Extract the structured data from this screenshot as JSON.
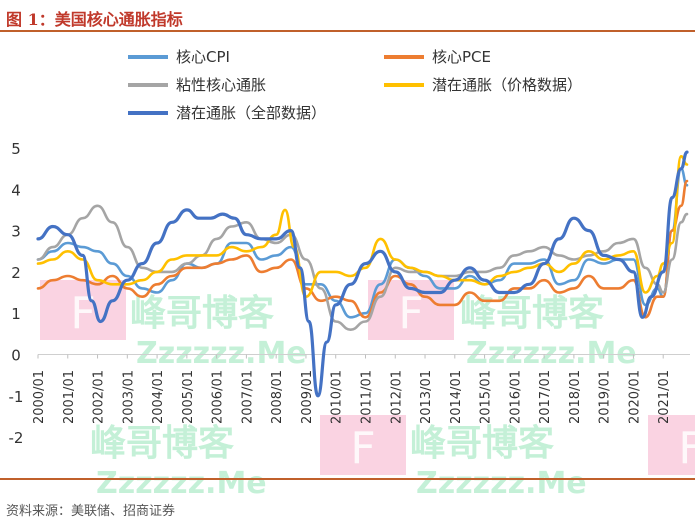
{
  "figure": {
    "title": "图 1：美国核心通胀指标",
    "source": "资料来源：美联储、招商证券"
  },
  "chart_data": {
    "type": "line",
    "x_categories": [
      "2000/01",
      "2001/01",
      "2002/01",
      "2003/01",
      "2004/01",
      "2005/01",
      "2006/01",
      "2007/01",
      "2008/01",
      "2009/01",
      "2010/01",
      "2011/01",
      "2012/01",
      "2013/01",
      "2014/01",
      "2015/01",
      "2016/01",
      "2017/01",
      "2018/01",
      "2019/01",
      "2020/01",
      "2021/01"
    ],
    "y_ticks": [
      -2,
      -1,
      0,
      1,
      2,
      3,
      4,
      5
    ],
    "ylim": [
      -2.3,
      5.1
    ],
    "grid": false,
    "legend_position": "top-left",
    "series": [
      {
        "name": "核心CPI",
        "color": "#5b9bd5",
        "x": [
          2000.0,
          2000.5,
          2001.0,
          2001.5,
          2002.0,
          2002.5,
          2003.0,
          2003.5,
          2004.0,
          2004.5,
          2005.0,
          2005.5,
          2006.0,
          2006.5,
          2007.0,
          2007.5,
          2008.0,
          2008.5,
          2009.0,
          2009.5,
          2010.0,
          2010.5,
          2011.0,
          2011.5,
          2012.0,
          2012.5,
          2013.0,
          2013.5,
          2014.0,
          2014.5,
          2015.0,
          2015.5,
          2016.0,
          2016.5,
          2017.0,
          2017.5,
          2018.0,
          2018.5,
          2019.0,
          2019.5,
          2020.0,
          2020.4,
          2020.8,
          2021.0,
          2021.3,
          2021.6,
          2021.8
        ],
        "y": [
          2.3,
          2.5,
          2.7,
          2.6,
          2.5,
          2.2,
          1.9,
          1.6,
          1.5,
          1.8,
          2.2,
          2.1,
          2.2,
          2.7,
          2.7,
          2.3,
          2.4,
          2.6,
          1.7,
          1.7,
          1.3,
          0.9,
          1.0,
          1.7,
          2.3,
          2.1,
          1.9,
          1.6,
          1.6,
          1.9,
          1.7,
          1.8,
          2.2,
          2.2,
          2.3,
          1.7,
          1.8,
          2.3,
          2.2,
          2.3,
          2.3,
          1.2,
          1.6,
          1.4,
          3.0,
          4.5,
          4.1
        ]
      },
      {
        "name": "核心PCE",
        "color": "#ed7d31",
        "x": [
          2000.0,
          2000.5,
          2001.0,
          2001.5,
          2002.0,
          2002.5,
          2003.0,
          2003.5,
          2004.0,
          2004.5,
          2005.0,
          2005.5,
          2006.0,
          2006.5,
          2007.0,
          2007.5,
          2008.0,
          2008.5,
          2009.0,
          2009.5,
          2010.0,
          2010.5,
          2011.0,
          2011.5,
          2012.0,
          2012.5,
          2013.0,
          2013.5,
          2014.0,
          2014.5,
          2015.0,
          2015.5,
          2016.0,
          2016.5,
          2017.0,
          2017.5,
          2018.0,
          2018.5,
          2019.0,
          2019.5,
          2020.0,
          2020.4,
          2020.8,
          2021.0,
          2021.3,
          2021.6,
          2021.8
        ],
        "y": [
          1.6,
          1.8,
          1.9,
          1.8,
          1.7,
          1.9,
          1.6,
          1.4,
          1.7,
          1.9,
          2.1,
          2.1,
          2.2,
          2.3,
          2.4,
          2.0,
          2.1,
          2.3,
          1.6,
          1.3,
          1.4,
          1.3,
          0.9,
          1.5,
          1.9,
          1.7,
          1.4,
          1.2,
          1.2,
          1.5,
          1.3,
          1.3,
          1.6,
          1.6,
          1.8,
          1.5,
          1.6,
          1.9,
          1.6,
          1.6,
          1.8,
          0.9,
          1.4,
          1.4,
          3.0,
          3.6,
          4.2
        ]
      },
      {
        "name": "粘性核心通胀",
        "color": "#a5a5a5",
        "x": [
          2000.0,
          2000.5,
          2001.0,
          2001.5,
          2002.0,
          2002.5,
          2003.0,
          2003.5,
          2004.0,
          2004.5,
          2005.0,
          2005.5,
          2006.0,
          2006.5,
          2007.0,
          2007.5,
          2008.0,
          2008.5,
          2009.0,
          2009.5,
          2010.0,
          2010.5,
          2011.0,
          2011.5,
          2012.0,
          2012.5,
          2013.0,
          2013.5,
          2014.0,
          2014.5,
          2015.0,
          2015.5,
          2016.0,
          2016.5,
          2017.0,
          2017.5,
          2018.0,
          2018.5,
          2019.0,
          2019.5,
          2020.0,
          2020.4,
          2020.8,
          2021.0,
          2021.3,
          2021.6,
          2021.8
        ],
        "y": [
          2.3,
          2.6,
          2.9,
          3.3,
          3.6,
          3.2,
          2.6,
          2.1,
          2.0,
          2.0,
          2.2,
          2.4,
          2.8,
          3.1,
          3.2,
          2.8,
          2.7,
          2.9,
          2.3,
          1.6,
          0.8,
          0.6,
          0.8,
          1.4,
          2.1,
          2.0,
          2.0,
          1.9,
          1.9,
          2.0,
          2.0,
          2.1,
          2.4,
          2.5,
          2.6,
          2.4,
          2.3,
          2.4,
          2.5,
          2.7,
          2.8,
          2.1,
          1.7,
          1.5,
          2.3,
          3.2,
          3.4
        ]
      },
      {
        "name": "潜在通胀（价格数据）",
        "color": "#ffc000",
        "x": [
          2000.0,
          2000.5,
          2001.0,
          2001.5,
          2002.0,
          2002.5,
          2003.0,
          2003.5,
          2004.0,
          2004.5,
          2005.0,
          2005.5,
          2006.0,
          2006.5,
          2007.0,
          2007.5,
          2008.0,
          2008.3,
          2008.6,
          2009.0,
          2009.5,
          2010.0,
          2010.5,
          2011.0,
          2011.5,
          2012.0,
          2012.5,
          2013.0,
          2013.5,
          2014.0,
          2014.5,
          2015.0,
          2015.5,
          2016.0,
          2016.5,
          2017.0,
          2017.5,
          2018.0,
          2018.5,
          2019.0,
          2019.5,
          2020.0,
          2020.4,
          2020.8,
          2021.0,
          2021.3,
          2021.6,
          2021.8
        ],
        "y": [
          2.2,
          2.3,
          2.5,
          2.3,
          1.8,
          1.7,
          1.7,
          1.8,
          2.0,
          2.3,
          2.4,
          2.4,
          2.4,
          2.6,
          2.5,
          2.6,
          2.9,
          3.5,
          2.6,
          1.4,
          2.0,
          2.0,
          1.9,
          2.1,
          2.8,
          2.3,
          2.1,
          2.0,
          1.9,
          1.8,
          1.8,
          1.7,
          1.9,
          2.0,
          2.1,
          2.2,
          2.0,
          2.2,
          2.5,
          2.3,
          2.4,
          2.5,
          1.5,
          1.9,
          2.2,
          2.7,
          4.8,
          4.6
        ]
      },
      {
        "name": "潜在通胀（全部数据）",
        "color": "#4472c4",
        "x": [
          2000.0,
          2000.5,
          2001.0,
          2001.5,
          2001.8,
          2002.1,
          2002.5,
          2003.0,
          2003.5,
          2004.0,
          2004.5,
          2005.0,
          2005.4,
          2005.8,
          2006.2,
          2006.6,
          2007.0,
          2007.5,
          2008.0,
          2008.5,
          2008.8,
          2009.1,
          2009.4,
          2009.7,
          2010.0,
          2010.5,
          2011.0,
          2011.5,
          2012.0,
          2012.5,
          2013.0,
          2013.5,
          2014.0,
          2014.5,
          2015.0,
          2015.5,
          2016.0,
          2016.5,
          2017.0,
          2017.5,
          2018.0,
          2018.5,
          2019.0,
          2019.5,
          2020.0,
          2020.3,
          2020.6,
          2021.0,
          2021.3,
          2021.6,
          2021.8
        ],
        "y": [
          2.8,
          3.1,
          2.9,
          2.4,
          1.3,
          0.8,
          1.3,
          1.8,
          2.2,
          2.7,
          3.2,
          3.5,
          3.3,
          3.3,
          3.4,
          3.3,
          2.9,
          2.8,
          2.8,
          3.0,
          2.1,
          0.8,
          -1.0,
          0.3,
          1.2,
          1.7,
          2.2,
          2.5,
          2.0,
          1.6,
          1.5,
          1.5,
          1.8,
          2.1,
          1.8,
          1.5,
          1.5,
          1.7,
          2.2,
          2.8,
          3.3,
          3.0,
          2.4,
          2.3,
          2.0,
          0.9,
          1.4,
          2.0,
          3.8,
          4.5,
          4.9
        ]
      }
    ]
  },
  "watermark": {
    "line1": "峰哥博客",
    "line2": "Zzzzzz.Me",
    "badge": "F"
  }
}
